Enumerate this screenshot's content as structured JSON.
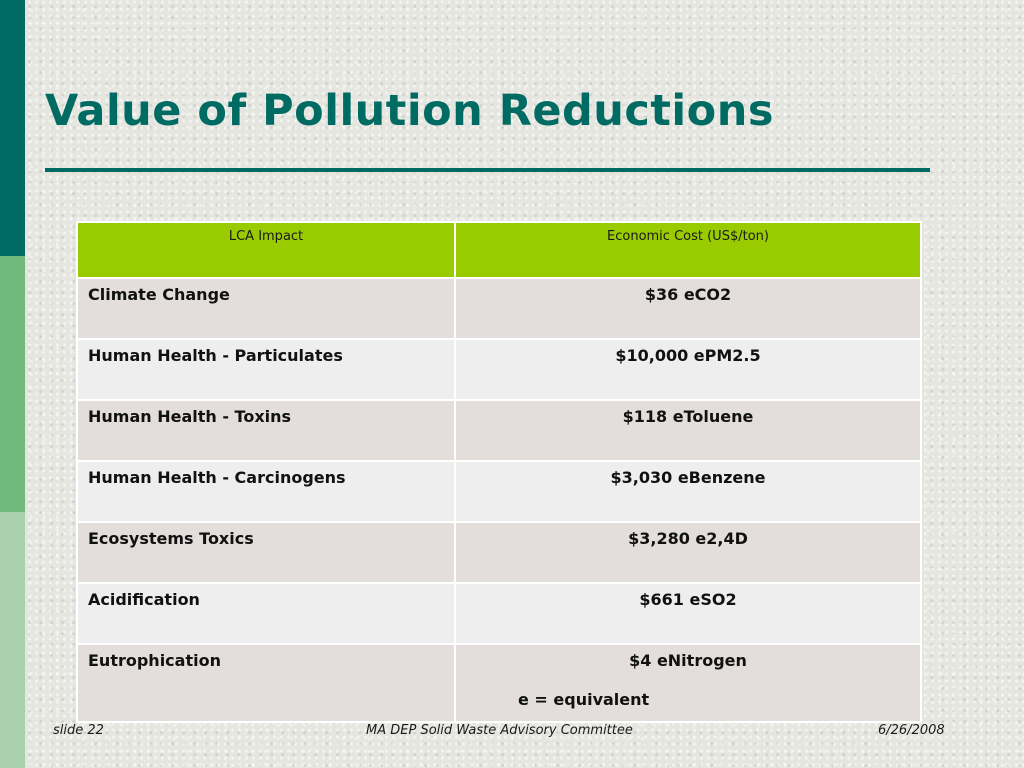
{
  "slide": {
    "title": "Value of Pollution Reductions"
  },
  "table": {
    "headers": [
      "LCA Impact",
      "Economic Cost (US$/ton)"
    ],
    "rows": [
      {
        "impact": "Climate Change",
        "amount": "$36",
        "unit": "eCO2"
      },
      {
        "impact": "Human Health - Particulates",
        "amount": "$10,000",
        "unit": "ePM2.5"
      },
      {
        "impact": "Human Health - Toxins",
        "amount": "$118",
        "unit": "eToluene"
      },
      {
        "impact": "Human Health - Carcinogens",
        "amount": "$3,030",
        "unit": "eBenzene"
      },
      {
        "impact": "Ecosystems Toxics",
        "amount": "$3,280",
        "unit": "e2,4D"
      },
      {
        "impact": "Acidification",
        "amount": "$661",
        "unit": "eSO2"
      },
      {
        "impact": "Eutrophication",
        "amount": "$4",
        "unit": "eNitrogen"
      }
    ],
    "footnote": "e = equivalent"
  },
  "footer": {
    "slide_number": "slide 22",
    "organization": "MA DEP Solid Waste Advisory Committee",
    "date": "6/26/2008"
  },
  "colors": {
    "accent": "#006b62",
    "header_fill": "#99cc00",
    "row_shade_a": "#e3dedc",
    "row_shade_b": "#efeeee"
  }
}
